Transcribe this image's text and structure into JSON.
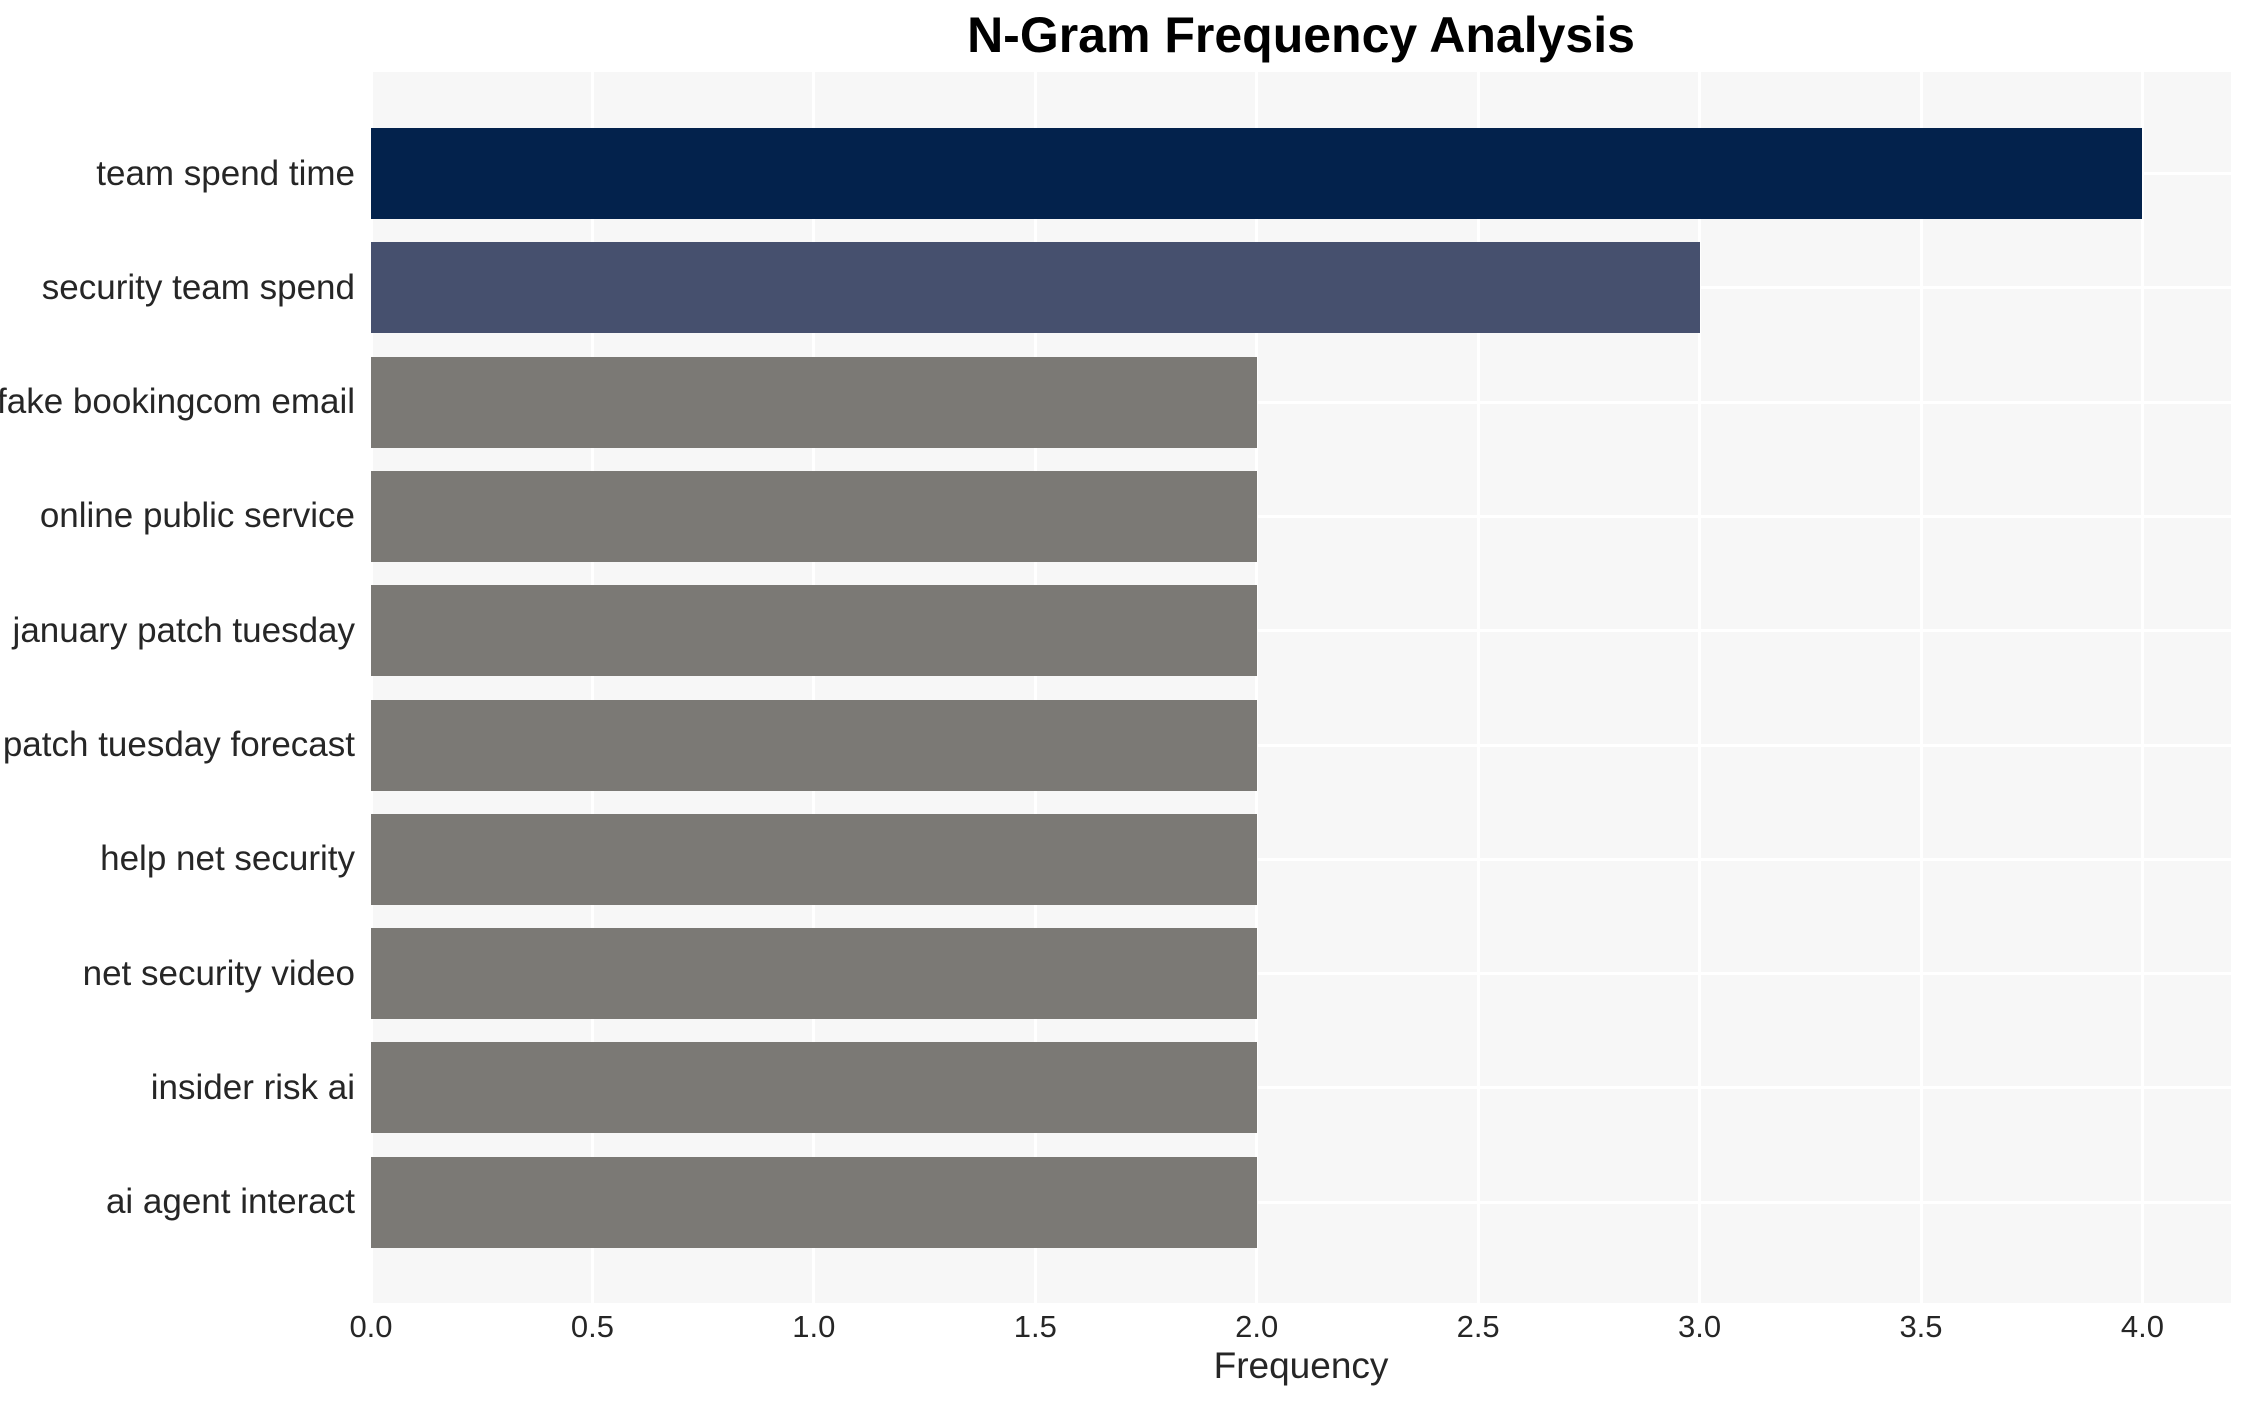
{
  "chart_data": {
    "type": "bar",
    "orientation": "horizontal",
    "title": "N-Gram Frequency Analysis",
    "xlabel": "Frequency",
    "ylabel": "",
    "categories": [
      "team spend time",
      "security team spend",
      "fake bookingcom email",
      "online public service",
      "january patch tuesday",
      "patch tuesday forecast",
      "help net security",
      "net security video",
      "insider risk ai",
      "ai agent interact"
    ],
    "values": [
      4,
      3,
      2,
      2,
      2,
      2,
      2,
      2,
      2,
      2
    ],
    "bar_colors": [
      "#03224c",
      "#46506e",
      "#7b7975",
      "#7b7975",
      "#7b7975",
      "#7b7975",
      "#7b7975",
      "#7b7975",
      "#7b7975",
      "#7b7975"
    ],
    "xlim": [
      0,
      4.2
    ],
    "xticks": [
      0,
      0.5,
      1,
      1.5,
      2,
      2.5,
      3,
      3.5,
      4
    ],
    "xtick_labels": [
      "0.0",
      "0.5",
      "1.0",
      "1.5",
      "2.0",
      "2.5",
      "3.0",
      "3.5",
      "4.0"
    ],
    "grid": true,
    "grid_color": "#ffffff",
    "plot_background": "#f7f7f7",
    "figure_background": "#ffffff",
    "text_color": "#262626",
    "legend": false
  }
}
